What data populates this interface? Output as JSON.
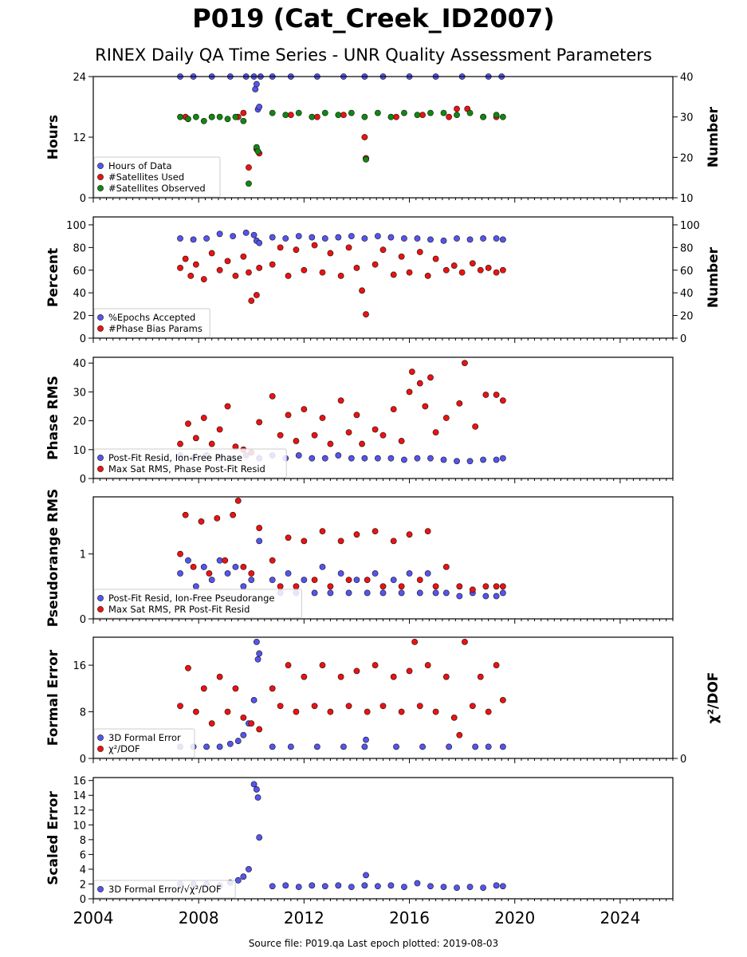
{
  "title": "P019 (Cat_Creek_ID2007)",
  "subtitle": "RINEX Daily QA Time Series - UNR Quality Assessment Parameters",
  "footer": "Source file: P019.qa Last epoch plotted: 2019-08-03",
  "colors": {
    "blue": "#5555ee",
    "red": "#ee1111",
    "green": "#118811",
    "edge": "#111111"
  },
  "chart_data": [
    {
      "type": "scatter",
      "ylabel": "Hours",
      "y2label": "Number",
      "xlim": [
        2004.0,
        2026.0
      ],
      "ylim": [
        0,
        24
      ],
      "y2lim": [
        10,
        40
      ],
      "yticks": [
        0,
        12,
        24
      ],
      "y2ticks": [
        10,
        20,
        30,
        40
      ],
      "legend_position": "lower-left",
      "series": [
        {
          "name": "Hours of Data",
          "color": "blue",
          "axis": "left",
          "x": [
            2007.3,
            2007.8,
            2008.5,
            2009.2,
            2009.8,
            2010.1,
            2010.15,
            2010.2,
            2010.25,
            2010.3,
            2010.35,
            2010.8,
            2011.5,
            2012.5,
            2013.5,
            2014.3,
            2014.35,
            2015.0,
            2016.0,
            2017.0,
            2018.0,
            2019.0,
            2019.5
          ],
          "y": [
            24,
            24,
            24,
            24,
            24,
            24,
            21.5,
            22.5,
            17.5,
            18.0,
            24,
            24,
            24,
            24,
            24,
            24,
            7.8,
            24,
            24,
            24,
            24,
            24,
            24
          ]
        },
        {
          "name": "#Satellites Used",
          "color": "red",
          "axis": "right",
          "x": [
            2007.5,
            2008.5,
            2009.5,
            2009.7,
            2009.9,
            2010.2,
            2010.3,
            2011.5,
            2012.5,
            2013.5,
            2014.3,
            2014.35,
            2015.5,
            2016.5,
            2017.5,
            2017.8,
            2018.2,
            2018.8,
            2019.3
          ],
          "y": [
            30,
            30,
            30,
            31,
            17.5,
            22,
            21,
            30.5,
            30,
            30.5,
            25,
            19.8,
            30,
            30.5,
            30,
            32,
            32,
            30,
            30
          ]
        },
        {
          "name": "#Satellites Observed",
          "color": "green",
          "axis": "right",
          "x": [
            2007.3,
            2007.6,
            2007.9,
            2008.2,
            2008.5,
            2008.8,
            2009.1,
            2009.4,
            2009.7,
            2009.9,
            2010.2,
            2010.25,
            2010.8,
            2011.3,
            2011.8,
            2012.3,
            2012.8,
            2013.3,
            2013.8,
            2014.3,
            2014.35,
            2014.8,
            2015.3,
            2015.8,
            2016.3,
            2016.8,
            2017.3,
            2017.8,
            2018.3,
            2018.8,
            2019.3,
            2019.55
          ],
          "y": [
            30,
            29.5,
            30,
            29,
            30,
            30,
            29.5,
            30,
            29,
            13.5,
            22.5,
            21.5,
            31,
            30.5,
            31,
            30,
            31,
            30.5,
            31,
            30,
            19.5,
            31,
            30,
            31,
            30.5,
            31,
            31,
            30.5,
            31,
            30,
            30.5,
            30
          ]
        }
      ]
    },
    {
      "type": "scatter",
      "ylabel": "Percent",
      "y2label": "Number",
      "xlim": [
        2004.0,
        2026.0
      ],
      "ylim": [
        0,
        107
      ],
      "yticks": [
        0,
        20,
        40,
        60,
        80,
        100
      ],
      "y2ticks": [
        0,
        20,
        40,
        60,
        80,
        100
      ],
      "legend_position": "lower-left",
      "series": [
        {
          "name": "%Epochs Accepted",
          "color": "blue",
          "x": [
            2007.3,
            2007.8,
            2008.3,
            2008.8,
            2009.3,
            2009.8,
            2010.1,
            2010.2,
            2010.3,
            2010.8,
            2011.3,
            2011.8,
            2012.3,
            2012.8,
            2013.3,
            2013.8,
            2014.3,
            2014.8,
            2015.3,
            2015.8,
            2016.3,
            2016.8,
            2017.3,
            2017.8,
            2018.3,
            2018.8,
            2019.3,
            2019.55
          ],
          "y": [
            88,
            87,
            88,
            92,
            90,
            93,
            91,
            86,
            84,
            89,
            88,
            90,
            89,
            88,
            89,
            90,
            88,
            90,
            89,
            88,
            88,
            87,
            86,
            88,
            87,
            88,
            88,
            87
          ]
        },
        {
          "name": "#Phase Bias Params",
          "color": "red",
          "x": [
            2007.3,
            2007.5,
            2007.7,
            2007.9,
            2008.2,
            2008.5,
            2008.8,
            2009.1,
            2009.4,
            2009.7,
            2009.9,
            2010.0,
            2010.2,
            2010.3,
            2010.8,
            2011.1,
            2011.4,
            2011.7,
            2012.0,
            2012.4,
            2012.7,
            2013.0,
            2013.4,
            2013.7,
            2014.0,
            2014.2,
            2014.35,
            2014.7,
            2015.0,
            2015.4,
            2015.7,
            2016.0,
            2016.4,
            2016.7,
            2017.0,
            2017.4,
            2017.7,
            2018.0,
            2018.4,
            2018.7,
            2019.0,
            2019.3,
            2019.55
          ],
          "y": [
            62,
            70,
            55,
            65,
            52,
            75,
            60,
            68,
            55,
            72,
            58,
            33,
            38,
            62,
            65,
            80,
            55,
            78,
            60,
            82,
            58,
            75,
            55,
            80,
            62,
            42,
            21,
            65,
            78,
            56,
            72,
            58,
            76,
            55,
            70,
            60,
            64,
            58,
            66,
            60,
            62,
            58,
            60
          ]
        }
      ]
    },
    {
      "type": "scatter",
      "ylabel": "Phase RMS",
      "xlim": [
        2004.0,
        2026.0
      ],
      "ylim": [
        0,
        42
      ],
      "yticks": [
        0,
        10,
        20,
        30,
        40
      ],
      "legend_position": "lower-left",
      "series": [
        {
          "name": "Post-Fit Resid, Ion-Free Phase",
          "color": "blue",
          "x": [
            2007.3,
            2007.8,
            2008.3,
            2008.8,
            2009.3,
            2009.8,
            2010.3,
            2010.8,
            2011.3,
            2011.8,
            2012.3,
            2012.8,
            2013.3,
            2013.8,
            2014.3,
            2014.8,
            2015.3,
            2015.8,
            2016.3,
            2016.8,
            2017.3,
            2017.8,
            2018.3,
            2018.8,
            2019.3,
            2019.55
          ],
          "y": [
            8,
            7,
            8,
            7,
            7,
            8,
            7,
            8,
            7,
            8,
            7,
            7,
            8,
            7,
            7,
            7,
            7,
            6.5,
            7,
            7,
            6.5,
            6,
            6,
            6.5,
            6.5,
            7
          ]
        },
        {
          "name": "Max Sat RMS, Phase Post-Fit Resid",
          "color": "red",
          "x": [
            2007.3,
            2007.6,
            2007.9,
            2008.2,
            2008.5,
            2008.8,
            2009.1,
            2009.4,
            2009.7,
            2010.0,
            2010.3,
            2010.8,
            2011.1,
            2011.4,
            2011.7,
            2012.0,
            2012.4,
            2012.7,
            2013.0,
            2013.4,
            2013.7,
            2014.0,
            2014.2,
            2014.7,
            2015.0,
            2015.4,
            2015.7,
            2016.0,
            2016.1,
            2016.4,
            2016.6,
            2016.8,
            2017.0,
            2017.4,
            2017.9,
            2018.1,
            2018.5,
            2018.9,
            2019.3,
            2019.55
          ],
          "y": [
            12,
            19,
            14,
            21,
            12,
            17,
            25,
            11,
            10,
            9,
            19.5,
            28.5,
            15,
            22,
            13,
            24,
            15,
            21,
            12,
            27,
            16,
            22,
            12,
            17,
            15,
            24,
            13,
            30,
            37,
            33,
            25,
            35,
            16,
            21,
            26,
            40,
            18,
            29,
            29,
            27
          ]
        }
      ]
    },
    {
      "type": "scatter",
      "ylabel": "Pseudorange RMS",
      "xlim": [
        2004.0,
        2026.0
      ],
      "ylim": [
        0,
        1.88
      ],
      "yticks": [
        0,
        1
      ],
      "legend_position": "lower-left",
      "series": [
        {
          "name": "Post-Fit Resid, Ion-Free Pseudorange",
          "color": "blue",
          "x": [
            2007.3,
            2007.6,
            2007.9,
            2008.2,
            2008.5,
            2008.8,
            2009.1,
            2009.4,
            2009.7,
            2010.0,
            2010.3,
            2010.8,
            2011.1,
            2011.4,
            2011.7,
            2012.0,
            2012.4,
            2012.7,
            2013.0,
            2013.4,
            2013.7,
            2014.0,
            2014.4,
            2014.7,
            2015.0,
            2015.4,
            2015.7,
            2016.0,
            2016.4,
            2016.7,
            2017.0,
            2017.4,
            2017.9,
            2018.4,
            2018.9,
            2019.3,
            2019.55
          ],
          "y": [
            0.7,
            0.9,
            0.5,
            0.8,
            0.6,
            0.9,
            0.7,
            0.8,
            0.5,
            0.6,
            1.2,
            0.6,
            0.4,
            0.7,
            0.4,
            0.6,
            0.4,
            0.8,
            0.4,
            0.7,
            0.4,
            0.6,
            0.4,
            0.7,
            0.4,
            0.6,
            0.4,
            0.7,
            0.4,
            0.7,
            0.4,
            0.4,
            0.35,
            0.4,
            0.35,
            0.35,
            0.4
          ]
        },
        {
          "name": "Max Sat RMS, PR Post-Fit Resid",
          "color": "red",
          "x": [
            2007.3,
            2007.5,
            2007.8,
            2008.1,
            2008.4,
            2008.7,
            2009.0,
            2009.3,
            2009.5,
            2009.7,
            2010.0,
            2010.3,
            2010.8,
            2011.1,
            2011.4,
            2011.7,
            2012.0,
            2012.4,
            2012.7,
            2013.0,
            2013.4,
            2013.7,
            2014.0,
            2014.4,
            2014.7,
            2015.0,
            2015.4,
            2015.7,
            2016.0,
            2016.4,
            2016.7,
            2017.0,
            2017.4,
            2017.9,
            2018.4,
            2018.9,
            2019.3,
            2019.55
          ],
          "y": [
            1.0,
            1.6,
            0.8,
            1.5,
            0.7,
            1.55,
            0.9,
            1.6,
            1.82,
            0.8,
            0.7,
            1.4,
            0.9,
            0.5,
            1.25,
            0.5,
            1.2,
            0.6,
            1.35,
            0.5,
            1.2,
            0.6,
            1.3,
            0.6,
            1.35,
            0.5,
            1.2,
            0.5,
            1.3,
            0.6,
            1.35,
            0.5,
            0.8,
            0.5,
            0.45,
            0.5,
            0.5,
            0.5
          ]
        }
      ]
    },
    {
      "type": "scatter",
      "ylabel": "Formal Error",
      "y2label": "χ²/DOF",
      "xlim": [
        2004.0,
        2026.0
      ],
      "ylim": [
        0,
        20.8
      ],
      "yticks": [
        0,
        8,
        16
      ],
      "y2ticks": [
        "0"
      ],
      "legend_position": "lower-left",
      "series": [
        {
          "name": "3D Formal Error",
          "color": "blue",
          "x": [
            2007.3,
            2007.8,
            2008.3,
            2008.8,
            2009.2,
            2009.5,
            2009.7,
            2009.9,
            2010.1,
            2010.2,
            2010.25,
            2010.3,
            2010.8,
            2011.5,
            2012.5,
            2013.5,
            2014.3,
            2014.35,
            2015.5,
            2016.5,
            2017.5,
            2018.5,
            2019.0,
            2019.55
          ],
          "y": [
            2,
            2,
            2,
            2,
            2.5,
            3,
            4,
            6,
            10,
            20,
            17,
            18,
            2,
            2,
            2,
            2,
            2,
            3.2,
            2,
            2,
            2,
            2,
            2,
            2
          ]
        },
        {
          "name": "χ²/DOF",
          "color": "red",
          "x": [
            2007.3,
            2007.6,
            2007.9,
            2008.2,
            2008.5,
            2008.8,
            2009.1,
            2009.4,
            2009.7,
            2010.0,
            2010.3,
            2010.8,
            2011.1,
            2011.4,
            2011.7,
            2012.0,
            2012.4,
            2012.7,
            2013.0,
            2013.4,
            2013.7,
            2014.0,
            2014.4,
            2014.7,
            2015.0,
            2015.4,
            2015.7,
            2016.0,
            2016.2,
            2016.4,
            2016.7,
            2017.0,
            2017.4,
            2017.7,
            2017.9,
            2018.1,
            2018.4,
            2018.7,
            2019.0,
            2019.3,
            2019.55
          ],
          "y": [
            9,
            15.5,
            8,
            12,
            6,
            14,
            8,
            12,
            7,
            6,
            5,
            12,
            9,
            16,
            8,
            14,
            9,
            16,
            8,
            14,
            9,
            15,
            8,
            16,
            9,
            14,
            8,
            15,
            20,
            9,
            16,
            8,
            14,
            7,
            4,
            20,
            9,
            14,
            8,
            16,
            10
          ]
        }
      ]
    },
    {
      "type": "scatter",
      "ylabel": "Scaled Error",
      "xlim": [
        2004.0,
        2026.0
      ],
      "ylim": [
        0,
        16.4
      ],
      "yticks": [
        0,
        2,
        4,
        6,
        8,
        10,
        12,
        14,
        16
      ],
      "xticks": [
        2004,
        2008,
        2012,
        2016,
        2020,
        2024
      ],
      "legend_position": "lower-left",
      "series": [
        {
          "name": "3D Formal Error/√χ²/DOF",
          "color": "blue",
          "x": [
            2007.3,
            2007.8,
            2008.3,
            2008.8,
            2009.2,
            2009.5,
            2009.7,
            2009.9,
            2010.1,
            2010.2,
            2010.25,
            2010.3,
            2010.8,
            2011.3,
            2011.8,
            2012.3,
            2012.8,
            2013.3,
            2013.8,
            2014.3,
            2014.35,
            2014.8,
            2015.3,
            2015.8,
            2016.3,
            2016.8,
            2017.3,
            2017.8,
            2018.3,
            2018.8,
            2019.3,
            2019.55
          ],
          "y": [
            2,
            2,
            2,
            1.8,
            2.2,
            2.5,
            3,
            4,
            15.5,
            14.8,
            13.7,
            8.3,
            1.7,
            1.8,
            1.6,
            1.8,
            1.7,
            1.8,
            1.6,
            1.8,
            3.2,
            1.7,
            1.8,
            1.6,
            2.1,
            1.7,
            1.6,
            1.5,
            1.6,
            1.5,
            1.8,
            1.7
          ]
        }
      ]
    }
  ]
}
